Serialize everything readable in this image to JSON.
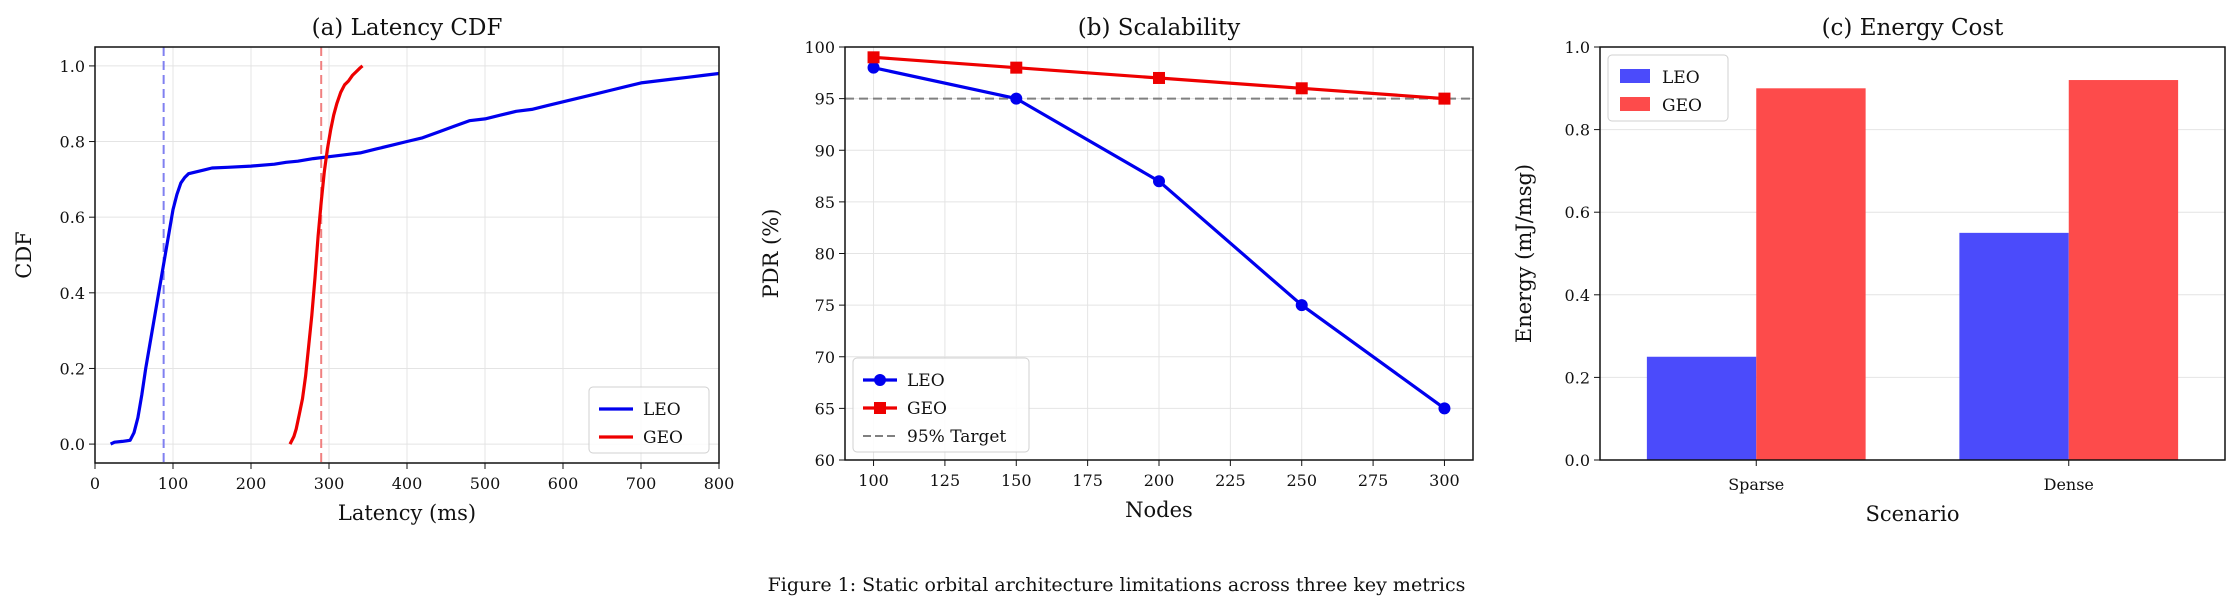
{
  "caption": "Figure 1: Static orbital architecture limitations across three key metrics",
  "chart_data": [
    {
      "type": "line",
      "title": "(a) Latency CDF",
      "xlabel": "Latency (ms)",
      "ylabel": "CDF",
      "xlim": [
        0,
        800
      ],
      "ylim": [
        -0.05,
        1.05
      ],
      "xticks": [
        0,
        100,
        200,
        300,
        400,
        500,
        600,
        700,
        800
      ],
      "xtick_labels": [
        "0",
        "100",
        "200",
        "300",
        "400",
        "500",
        "600",
        "700",
        "800"
      ],
      "yticks": [
        0.0,
        0.2,
        0.4,
        0.6,
        0.8,
        1.0
      ],
      "ytick_labels": [
        "0.0",
        "0.2",
        "0.4",
        "0.6",
        "0.8",
        "1.0"
      ],
      "grid": true,
      "legend_position": "lower-right",
      "vlines": [
        {
          "x": 88,
          "color": "#8080f0",
          "style": "dashed"
        },
        {
          "x": 290,
          "color": "#f08080",
          "style": "dashed"
        }
      ],
      "series": [
        {
          "name": "LEO",
          "color": "#0000ee",
          "x": [
            20,
            25,
            35,
            45,
            50,
            55,
            60,
            65,
            70,
            75,
            80,
            85,
            90,
            95,
            100,
            105,
            110,
            115,
            120,
            130,
            140,
            150,
            170,
            200,
            230,
            245,
            260,
            280,
            300,
            320,
            340,
            360,
            380,
            400,
            420,
            440,
            460,
            480,
            500,
            520,
            540,
            560,
            580,
            600,
            620,
            640,
            660,
            680,
            700,
            720,
            740,
            760,
            780,
            800
          ],
          "y": [
            0.0,
            0.005,
            0.007,
            0.01,
            0.03,
            0.07,
            0.13,
            0.2,
            0.26,
            0.32,
            0.38,
            0.44,
            0.5,
            0.56,
            0.62,
            0.66,
            0.69,
            0.705,
            0.715,
            0.72,
            0.725,
            0.73,
            0.732,
            0.735,
            0.74,
            0.745,
            0.748,
            0.755,
            0.76,
            0.765,
            0.77,
            0.78,
            0.79,
            0.8,
            0.81,
            0.825,
            0.84,
            0.855,
            0.86,
            0.87,
            0.88,
            0.885,
            0.895,
            0.905,
            0.915,
            0.925,
            0.935,
            0.945,
            0.955,
            0.96,
            0.965,
            0.97,
            0.975,
            0.98
          ]
        },
        {
          "name": "GEO",
          "color": "#ee0000",
          "x": [
            250,
            255,
            258,
            262,
            266,
            270,
            274,
            278,
            282,
            286,
            290,
            294,
            298,
            302,
            306,
            310,
            315,
            320,
            325,
            330,
            335,
            340,
            343
          ],
          "y": [
            0.0,
            0.02,
            0.04,
            0.08,
            0.12,
            0.18,
            0.26,
            0.34,
            0.44,
            0.55,
            0.64,
            0.72,
            0.78,
            0.83,
            0.87,
            0.9,
            0.93,
            0.95,
            0.96,
            0.975,
            0.985,
            0.995,
            1.0
          ]
        }
      ]
    },
    {
      "type": "line",
      "title": "(b) Scalability",
      "xlabel": "Nodes",
      "ylabel": "PDR (%)",
      "xlim": [
        90,
        310
      ],
      "ylim": [
        60,
        100
      ],
      "xticks": [
        100,
        125,
        150,
        175,
        200,
        225,
        250,
        275,
        300
      ],
      "xtick_labels": [
        "100",
        "125",
        "150",
        "175",
        "200",
        "225",
        "250",
        "275",
        "300"
      ],
      "yticks": [
        60,
        65,
        70,
        75,
        80,
        85,
        90,
        95,
        100
      ],
      "ytick_labels": [
        "60",
        "65",
        "70",
        "75",
        "80",
        "85",
        "90",
        "95",
        "100"
      ],
      "grid": true,
      "legend_position": "lower-left",
      "hline": {
        "y": 95,
        "name": "95% Target",
        "color": "#808080",
        "style": "dashed"
      },
      "series": [
        {
          "name": "LEO",
          "color": "#0000ee",
          "marker": "circle",
          "x": [
            100,
            150,
            200,
            250,
            300
          ],
          "y": [
            98,
            95,
            87,
            75,
            65
          ]
        },
        {
          "name": "GEO",
          "color": "#ee0000",
          "marker": "square",
          "x": [
            100,
            150,
            200,
            250,
            300
          ],
          "y": [
            99,
            98,
            97,
            96,
            95
          ]
        }
      ]
    },
    {
      "type": "bar",
      "title": "(c) Energy Cost",
      "xlabel": "Scenario",
      "ylabel": "Energy (mJ/msg)",
      "ylim": [
        0,
        1.0
      ],
      "yticks": [
        0.0,
        0.2,
        0.4,
        0.6,
        0.8,
        1.0
      ],
      "ytick_labels": [
        "0.0",
        "0.2",
        "0.4",
        "0.6",
        "0.8",
        "1.0"
      ],
      "grid": true,
      "legend_position": "upper-left",
      "categories": [
        "Sparse",
        "Dense"
      ],
      "series": [
        {
          "name": "LEO",
          "color": "#4b4bfb",
          "values": [
            0.25,
            0.55
          ]
        },
        {
          "name": "GEO",
          "color": "#fd4b4b",
          "values": [
            0.9,
            0.92
          ]
        }
      ]
    }
  ]
}
